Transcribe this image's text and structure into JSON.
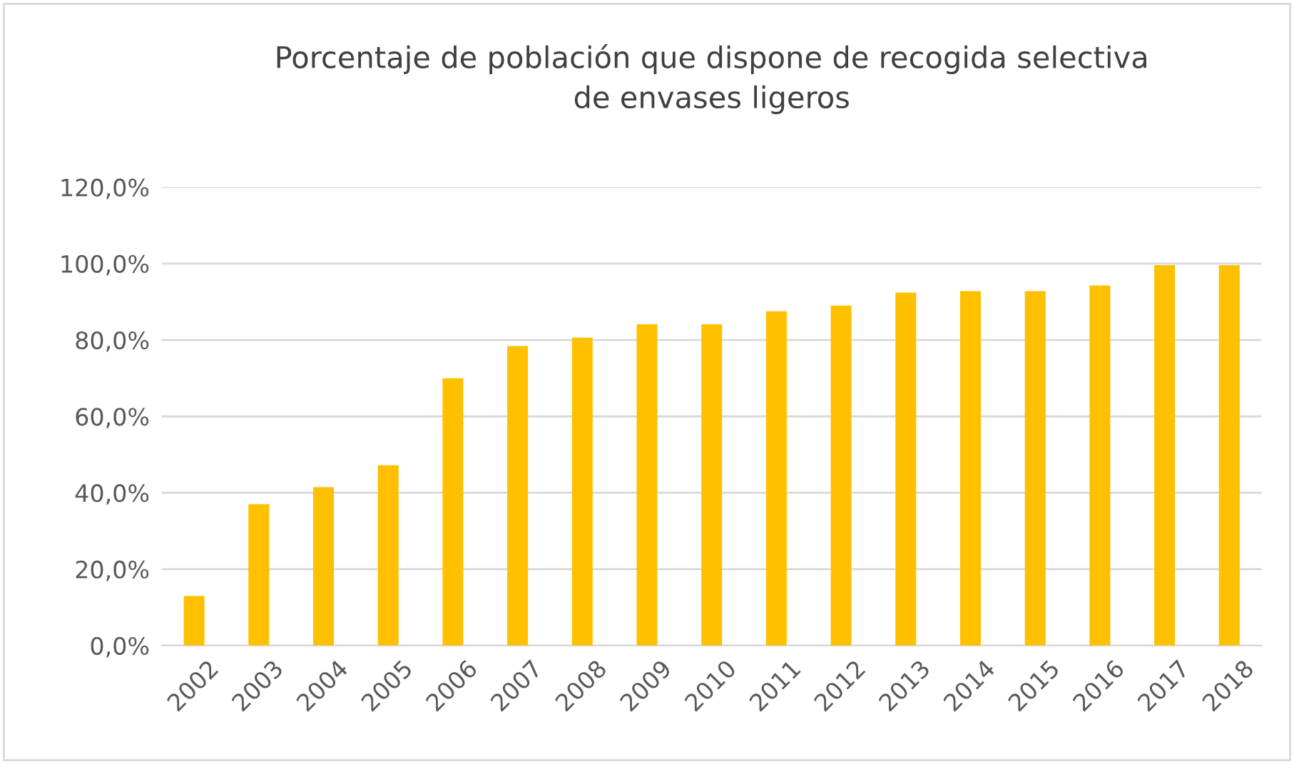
{
  "chart_data": {
    "type": "bar",
    "title": "Porcentaje de población que dispone de recogida selectiva\nde envases ligeros",
    "categories": [
      "2002",
      "2003",
      "2004",
      "2005",
      "2006",
      "2007",
      "2008",
      "2009",
      "2010",
      "2011",
      "2012",
      "2013",
      "2014",
      "2015",
      "2016",
      "2017",
      "2018"
    ],
    "values": [
      13.0,
      37.0,
      41.5,
      47.2,
      70.0,
      78.4,
      80.6,
      84.1,
      84.1,
      87.5,
      89.0,
      92.4,
      92.8,
      92.8,
      94.3,
      99.6,
      99.6
    ],
    "color": "#ffc000",
    "ylim": [
      0,
      120
    ],
    "yticks": [
      {
        "value": 0,
        "label": "0,0%"
      },
      {
        "value": 20,
        "label": "20,0%"
      },
      {
        "value": 40,
        "label": "40,0%"
      },
      {
        "value": 60,
        "label": "60,0%"
      },
      {
        "value": 80,
        "label": "80,0%"
      },
      {
        "value": 100,
        "label": "100,0%"
      },
      {
        "value": 120,
        "label": "120,0%"
      }
    ],
    "grid": "y",
    "legend": false
  }
}
